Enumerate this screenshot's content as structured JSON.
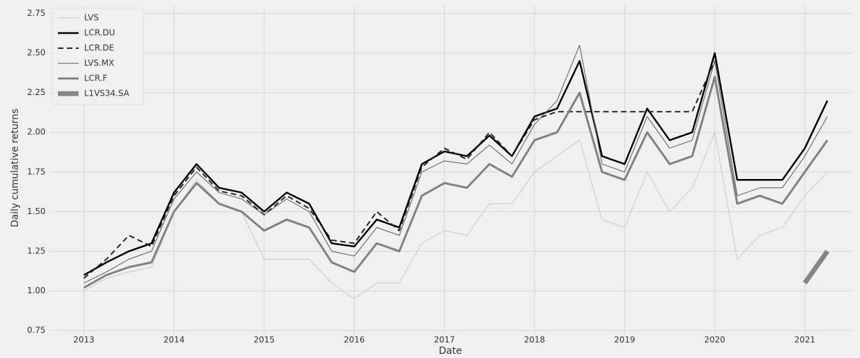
{
  "chart_data": {
    "type": "line",
    "xlabel": "Date",
    "ylabel": "Daily cumulative returns",
    "x": [
      2013.0,
      2013.25,
      2013.5,
      2013.75,
      2014.0,
      2014.25,
      2014.5,
      2014.75,
      2015.0,
      2015.25,
      2015.5,
      2015.75,
      2016.0,
      2016.25,
      2016.5,
      2016.75,
      2017.0,
      2017.25,
      2017.5,
      2017.75,
      2018.0,
      2018.25,
      2018.5,
      2018.75,
      2019.0,
      2019.25,
      2019.5,
      2019.75,
      2020.0,
      2020.25,
      2020.5,
      2020.75,
      2021.0,
      2021.25
    ],
    "xlim": [
      2012.62,
      2021.52
    ],
    "xticks": [
      2013,
      2014,
      2015,
      2016,
      2017,
      2018,
      2019,
      2020,
      2021
    ],
    "ylim": [
      0.72,
      2.8
    ],
    "yticks": [
      0.75,
      {
        "value": 1,
        "label": "1.00"
      },
      1.25,
      {
        "value": 1.5,
        "label": "1.50"
      },
      1.75,
      {
        "value": 2,
        "label": "2.00"
      },
      2.25,
      {
        "value": 2.5,
        "label": "2.50"
      },
      2.75
    ],
    "grid": true,
    "legend": "upper left",
    "series": [
      {
        "name": "LVS",
        "color": "#c8c8c8",
        "width": 1,
        "dash": false,
        "values": [
          1.0,
          1.08,
          1.12,
          1.15,
          1.5,
          1.7,
          1.55,
          1.5,
          1.2,
          1.2,
          1.2,
          1.05,
          0.95,
          1.05,
          1.05,
          1.3,
          1.38,
          1.35,
          1.55,
          1.55,
          1.75,
          1.85,
          1.95,
          1.45,
          1.4,
          1.75,
          1.5,
          1.65,
          2.0,
          1.2,
          1.35,
          1.4,
          1.6,
          1.75
        ]
      },
      {
        "name": "LCR.DU",
        "color": "#000000",
        "width": 2.5,
        "dash": false,
        "values": [
          1.1,
          1.18,
          1.25,
          1.3,
          1.62,
          1.8,
          1.65,
          1.62,
          1.5,
          1.62,
          1.55,
          1.3,
          1.28,
          1.45,
          1.4,
          1.8,
          1.88,
          1.85,
          1.98,
          1.85,
          2.1,
          2.15,
          2.45,
          1.85,
          1.8,
          2.15,
          1.95,
          2.0,
          2.5,
          1.7,
          1.7,
          1.7,
          1.9,
          2.2
        ]
      },
      {
        "name": "LCR.DE",
        "color": "#222222",
        "width": 2,
        "dash": true,
        "values": [
          1.08,
          1.2,
          1.35,
          1.28,
          1.6,
          1.78,
          1.63,
          1.6,
          1.48,
          1.6,
          1.52,
          1.32,
          1.3,
          1.5,
          1.38,
          1.78,
          1.9,
          1.83,
          2.0,
          1.85,
          2.08,
          2.13,
          2.13,
          2.13,
          2.13,
          2.13,
          2.13,
          2.13,
          2.45,
          null,
          null,
          null,
          null,
          null
        ]
      },
      {
        "name": "LVS.MX",
        "color": "#555555",
        "width": 1,
        "dash": false,
        "values": [
          1.05,
          1.12,
          1.2,
          1.25,
          1.58,
          1.75,
          1.62,
          1.58,
          1.48,
          1.58,
          1.5,
          1.25,
          1.22,
          1.4,
          1.35,
          1.75,
          1.82,
          1.8,
          1.92,
          1.8,
          2.05,
          2.2,
          2.55,
          1.8,
          1.75,
          2.1,
          1.9,
          1.95,
          2.45,
          1.6,
          1.65,
          1.65,
          1.85,
          2.1
        ]
      },
      {
        "name": "LCR.F",
        "color": "#808080",
        "width": 3,
        "dash": false,
        "values": [
          1.02,
          1.1,
          1.15,
          1.18,
          1.5,
          1.68,
          1.55,
          1.5,
          1.38,
          1.45,
          1.4,
          1.18,
          1.12,
          1.3,
          1.25,
          1.6,
          1.68,
          1.65,
          1.8,
          1.72,
          1.95,
          2.0,
          2.25,
          1.75,
          1.7,
          2.0,
          1.8,
          1.85,
          2.35,
          1.55,
          1.6,
          1.55,
          1.75,
          1.95
        ]
      },
      {
        "name": "L1VS34.SA",
        "color": "#858585",
        "width": 7,
        "dash": false,
        "values": [
          null,
          null,
          null,
          null,
          null,
          null,
          null,
          null,
          null,
          null,
          null,
          null,
          null,
          null,
          null,
          null,
          null,
          null,
          null,
          null,
          null,
          null,
          null,
          null,
          null,
          null,
          null,
          null,
          null,
          null,
          null,
          null,
          1.05,
          1.25
        ]
      }
    ]
  }
}
